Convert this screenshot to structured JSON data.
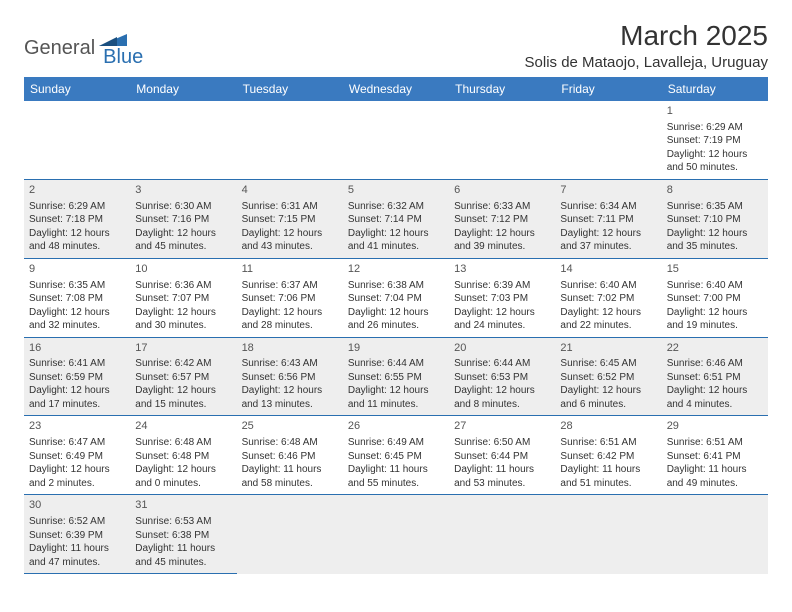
{
  "brand": {
    "general": "General",
    "blue": "Blue"
  },
  "title": "March 2025",
  "location": "Solis de Mataojo, Lavalleja, Uruguay",
  "colors": {
    "headerBg": "#3a7ac0",
    "headerText": "#ffffff",
    "border": "#2a6fb0",
    "altRow": "#eeeeee",
    "text": "#333333",
    "dayNum": "#555555"
  },
  "dayHeaders": [
    "Sunday",
    "Monday",
    "Tuesday",
    "Wednesday",
    "Thursday",
    "Friday",
    "Saturday"
  ],
  "weeks": [
    [
      null,
      null,
      null,
      null,
      null,
      null,
      {
        "n": "1",
        "sr": "6:29 AM",
        "ss": "7:19 PM",
        "dl": "12 hours and 50 minutes."
      }
    ],
    [
      {
        "n": "2",
        "sr": "6:29 AM",
        "ss": "7:18 PM",
        "dl": "12 hours and 48 minutes."
      },
      {
        "n": "3",
        "sr": "6:30 AM",
        "ss": "7:16 PM",
        "dl": "12 hours and 45 minutes."
      },
      {
        "n": "4",
        "sr": "6:31 AM",
        "ss": "7:15 PM",
        "dl": "12 hours and 43 minutes."
      },
      {
        "n": "5",
        "sr": "6:32 AM",
        "ss": "7:14 PM",
        "dl": "12 hours and 41 minutes."
      },
      {
        "n": "6",
        "sr": "6:33 AM",
        "ss": "7:12 PM",
        "dl": "12 hours and 39 minutes."
      },
      {
        "n": "7",
        "sr": "6:34 AM",
        "ss": "7:11 PM",
        "dl": "12 hours and 37 minutes."
      },
      {
        "n": "8",
        "sr": "6:35 AM",
        "ss": "7:10 PM",
        "dl": "12 hours and 35 minutes."
      }
    ],
    [
      {
        "n": "9",
        "sr": "6:35 AM",
        "ss": "7:08 PM",
        "dl": "12 hours and 32 minutes."
      },
      {
        "n": "10",
        "sr": "6:36 AM",
        "ss": "7:07 PM",
        "dl": "12 hours and 30 minutes."
      },
      {
        "n": "11",
        "sr": "6:37 AM",
        "ss": "7:06 PM",
        "dl": "12 hours and 28 minutes."
      },
      {
        "n": "12",
        "sr": "6:38 AM",
        "ss": "7:04 PM",
        "dl": "12 hours and 26 minutes."
      },
      {
        "n": "13",
        "sr": "6:39 AM",
        "ss": "7:03 PM",
        "dl": "12 hours and 24 minutes."
      },
      {
        "n": "14",
        "sr": "6:40 AM",
        "ss": "7:02 PM",
        "dl": "12 hours and 22 minutes."
      },
      {
        "n": "15",
        "sr": "6:40 AM",
        "ss": "7:00 PM",
        "dl": "12 hours and 19 minutes."
      }
    ],
    [
      {
        "n": "16",
        "sr": "6:41 AM",
        "ss": "6:59 PM",
        "dl": "12 hours and 17 minutes."
      },
      {
        "n": "17",
        "sr": "6:42 AM",
        "ss": "6:57 PM",
        "dl": "12 hours and 15 minutes."
      },
      {
        "n": "18",
        "sr": "6:43 AM",
        "ss": "6:56 PM",
        "dl": "12 hours and 13 minutes."
      },
      {
        "n": "19",
        "sr": "6:44 AM",
        "ss": "6:55 PM",
        "dl": "12 hours and 11 minutes."
      },
      {
        "n": "20",
        "sr": "6:44 AM",
        "ss": "6:53 PM",
        "dl": "12 hours and 8 minutes."
      },
      {
        "n": "21",
        "sr": "6:45 AM",
        "ss": "6:52 PM",
        "dl": "12 hours and 6 minutes."
      },
      {
        "n": "22",
        "sr": "6:46 AM",
        "ss": "6:51 PM",
        "dl": "12 hours and 4 minutes."
      }
    ],
    [
      {
        "n": "23",
        "sr": "6:47 AM",
        "ss": "6:49 PM",
        "dl": "12 hours and 2 minutes."
      },
      {
        "n": "24",
        "sr": "6:48 AM",
        "ss": "6:48 PM",
        "dl": "12 hours and 0 minutes."
      },
      {
        "n": "25",
        "sr": "6:48 AM",
        "ss": "6:46 PM",
        "dl": "11 hours and 58 minutes."
      },
      {
        "n": "26",
        "sr": "6:49 AM",
        "ss": "6:45 PM",
        "dl": "11 hours and 55 minutes."
      },
      {
        "n": "27",
        "sr": "6:50 AM",
        "ss": "6:44 PM",
        "dl": "11 hours and 53 minutes."
      },
      {
        "n": "28",
        "sr": "6:51 AM",
        "ss": "6:42 PM",
        "dl": "11 hours and 51 minutes."
      },
      {
        "n": "29",
        "sr": "6:51 AM",
        "ss": "6:41 PM",
        "dl": "11 hours and 49 minutes."
      }
    ],
    [
      {
        "n": "30",
        "sr": "6:52 AM",
        "ss": "6:39 PM",
        "dl": "11 hours and 47 minutes."
      },
      {
        "n": "31",
        "sr": "6:53 AM",
        "ss": "6:38 PM",
        "dl": "11 hours and 45 minutes."
      },
      null,
      null,
      null,
      null,
      null
    ]
  ],
  "labels": {
    "sunrise": "Sunrise:",
    "sunset": "Sunset:",
    "daylight": "Daylight:"
  }
}
